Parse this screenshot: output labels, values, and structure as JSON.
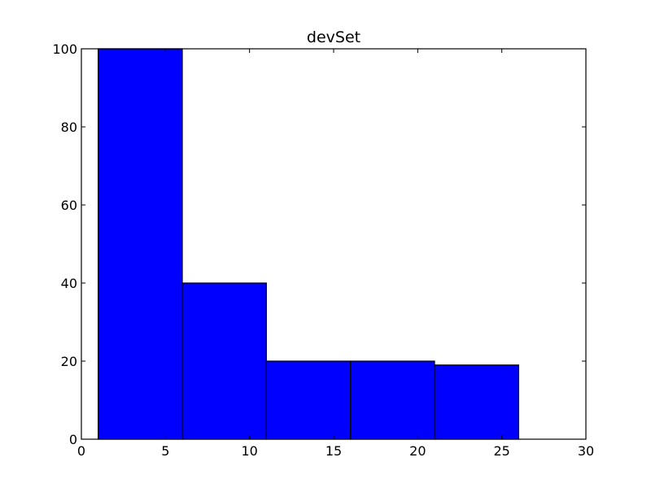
{
  "chart_data": {
    "type": "bar",
    "title": "devSet",
    "xlabel": "",
    "ylabel": "",
    "xlim": [
      0,
      30
    ],
    "ylim": [
      0,
      100
    ],
    "x_ticks": [
      "0",
      "5",
      "10",
      "15",
      "20",
      "25",
      "30"
    ],
    "y_ticks": [
      "0",
      "20",
      "40",
      "60",
      "80",
      "100"
    ],
    "bins": [
      {
        "start": 1,
        "end": 6,
        "value": 100
      },
      {
        "start": 6,
        "end": 11,
        "value": 40
      },
      {
        "start": 11,
        "end": 16,
        "value": 20
      },
      {
        "start": 16,
        "end": 21,
        "value": 20
      },
      {
        "start": 21,
        "end": 26,
        "value": 19
      }
    ],
    "bar_color": "#0000ff",
    "edge_color": "#000000",
    "grid": false,
    "legend": "none"
  }
}
